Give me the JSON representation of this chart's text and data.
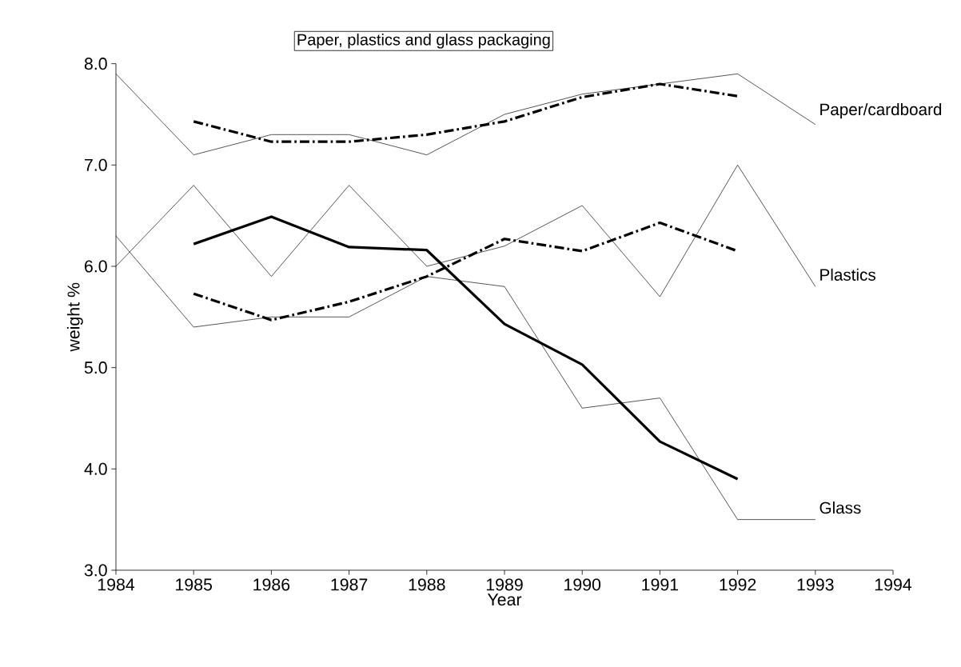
{
  "chart_data": {
    "type": "line",
    "title": "Paper, plastics and glass packaging",
    "xlabel": "Year",
    "ylabel": "weight %",
    "xlim": [
      1984,
      1994
    ],
    "xticks": [
      1984,
      1985,
      1986,
      1987,
      1988,
      1989,
      1990,
      1991,
      1992,
      1993,
      1994
    ],
    "ylim": [
      3.0,
      8.0
    ],
    "yticks": [
      {
        "value": 3,
        "label": "3.0"
      },
      {
        "value": 4,
        "label": "4.0"
      },
      {
        "value": 5,
        "label": "5.0"
      },
      {
        "value": 6,
        "label": "6.0"
      },
      {
        "value": 7,
        "label": "7.0"
      },
      {
        "value": 8,
        "label": "8.0"
      }
    ],
    "grid": false,
    "marker": "none",
    "series": [
      {
        "name": "Paper/cardboard",
        "color": "#000000",
        "line_style": "solid",
        "x": [
          1984,
          1985,
          1986,
          1987,
          1988,
          1989,
          1990,
          1991,
          1992,
          1993
        ],
        "values": [
          7.9,
          7.1,
          7.3,
          7.3,
          7.1,
          7.5,
          7.7,
          7.8,
          7.9,
          7.4
        ]
      },
      {
        "color": "#000000",
        "line_style": "dashed",
        "x": [
          1985,
          1986,
          1987,
          1988,
          1989,
          1990,
          1991,
          1992
        ],
        "values": [
          7.43,
          7.23,
          7.23,
          7.3,
          7.43,
          7.67,
          7.8,
          7.68
        ]
      },
      {
        "name": "Plastics",
        "color": "#000000",
        "line_style": "solid",
        "x": [
          1984,
          1985,
          1986,
          1987,
          1988,
          1989,
          1990,
          1991,
          1992,
          1993
        ],
        "values": [
          6.0,
          6.8,
          5.9,
          6.8,
          6.0,
          6.2,
          6.6,
          5.7,
          7.0,
          5.8
        ]
      },
      {
        "color": "#000000",
        "line_style": "dashed",
        "x": [
          1985,
          1986,
          1987,
          1988,
          1989,
          1990,
          1991,
          1992
        ],
        "values": [
          5.73,
          5.47,
          5.65,
          5.9,
          6.27,
          6.15,
          6.43,
          6.15
        ]
      },
      {
        "name": "Glass",
        "color": "#000000",
        "line_style": "solid",
        "x": [
          1984,
          1985,
          1986,
          1987,
          1988,
          1989,
          1990,
          1991,
          1992,
          1993
        ],
        "values": [
          6.3,
          5.4,
          5.5,
          5.5,
          5.9,
          5.8,
          4.6,
          4.7,
          3.5,
          3.5
        ]
      },
      {
        "color": "#000000",
        "line_style": "solid",
        "x": [
          1985,
          1986,
          1987,
          1988,
          1989,
          1990,
          1991,
          1992
        ],
        "values": [
          6.22,
          6.49,
          6.19,
          6.16,
          5.43,
          5.03,
          4.27,
          3.9
        ]
      }
    ]
  }
}
